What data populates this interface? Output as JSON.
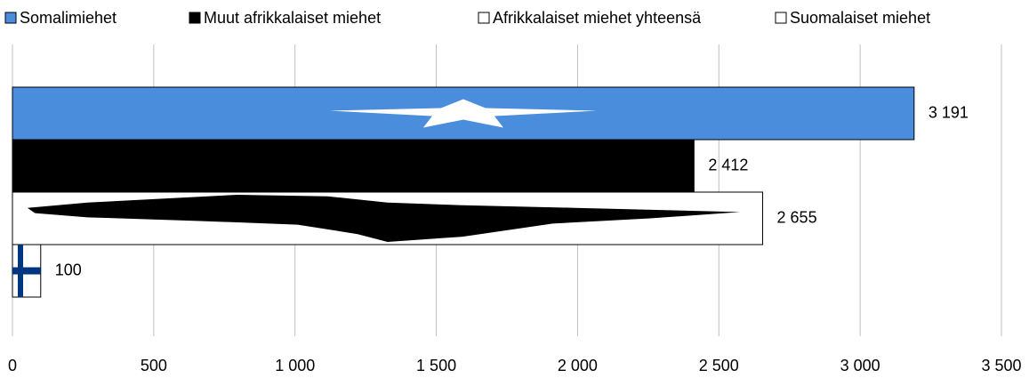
{
  "chart_data": {
    "type": "bar",
    "orientation": "horizontal",
    "categories": [
      null
    ],
    "series": [
      {
        "name": "Somalimiehet",
        "color": "#4a8ddc",
        "values": [
          3191
        ],
        "value_labels": [
          "3 191"
        ]
      },
      {
        "name": "Muut afrikkalaiset miehet",
        "color": "#000000",
        "values": [
          2412
        ],
        "value_labels": [
          "2 412"
        ]
      },
      {
        "name": "Afrikkalaiset miehet yhteensä",
        "color": "#ffffff",
        "values": [
          2655
        ],
        "value_labels": [
          "2 655"
        ]
      },
      {
        "name": "Suomalaiset miehet",
        "color": "#ffffff",
        "values": [
          100
        ],
        "value_labels": [
          "100"
        ]
      }
    ],
    "xlim": [
      0,
      3500
    ],
    "xticks": [
      0,
      500,
      {
        "value": 1000,
        "label": "1 000"
      },
      {
        "value": 1500,
        "label": "1 500"
      },
      {
        "value": 2000,
        "label": "2 000"
      },
      {
        "value": 2500,
        "label": "2 500"
      },
      {
        "value": 3000,
        "label": "3 000"
      },
      {
        "value": 3500,
        "label": "3 500"
      }
    ],
    "grid": true,
    "legend": "top"
  }
}
